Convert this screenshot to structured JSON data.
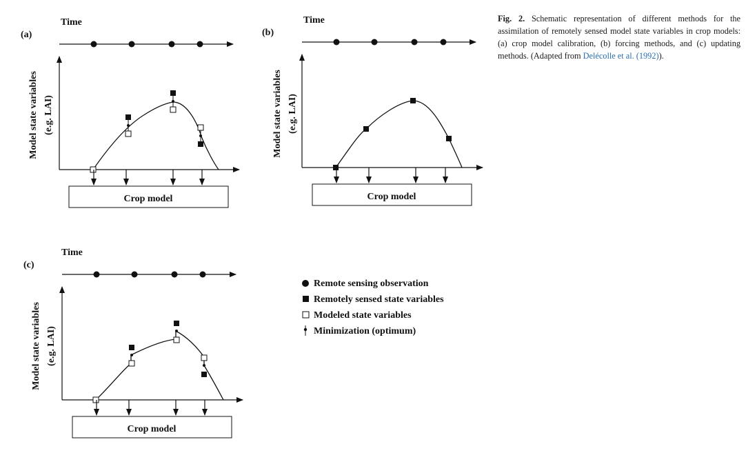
{
  "panels": [
    {
      "id": "a",
      "label": "(a)",
      "time_label": "Time",
      "y_label_line1": "Model state variables",
      "y_label_line2": "(e.g. LAI)",
      "box_label": "Crop model"
    },
    {
      "id": "b",
      "label": "(b)",
      "time_label": "Time",
      "y_label_line1": "Model state variables",
      "y_label_line2": "(e.g. LAI)",
      "box_label": "Crop model"
    },
    {
      "id": "c",
      "label": "(c)",
      "time_label": "Time",
      "y_label_line1": "Model state variables",
      "y_label_line2": "(e.g. LAI)",
      "box_label": "Crop model"
    }
  ],
  "legend": [
    {
      "symbol": "circle",
      "label": "Remote sensing observation"
    },
    {
      "symbol": "filled-square",
      "label": "Remotely sensed state variables"
    },
    {
      "symbol": "open-square",
      "label": "Modeled state variables"
    },
    {
      "symbol": "pin",
      "label": "Minimization (optimum)"
    }
  ],
  "caption": {
    "label": "Fig. 2.",
    "text": " Schematic representation of different methods for the assimilation of remotely sensed model state variables in crop models: (a) crop model calibration, (b) forcing methods, and (c) updating methods. (Adapted from ",
    "ref": "Delécolle et al. (1992)",
    "end": ")."
  },
  "colors": {
    "ink": "#111111",
    "link": "#2a6db0"
  }
}
